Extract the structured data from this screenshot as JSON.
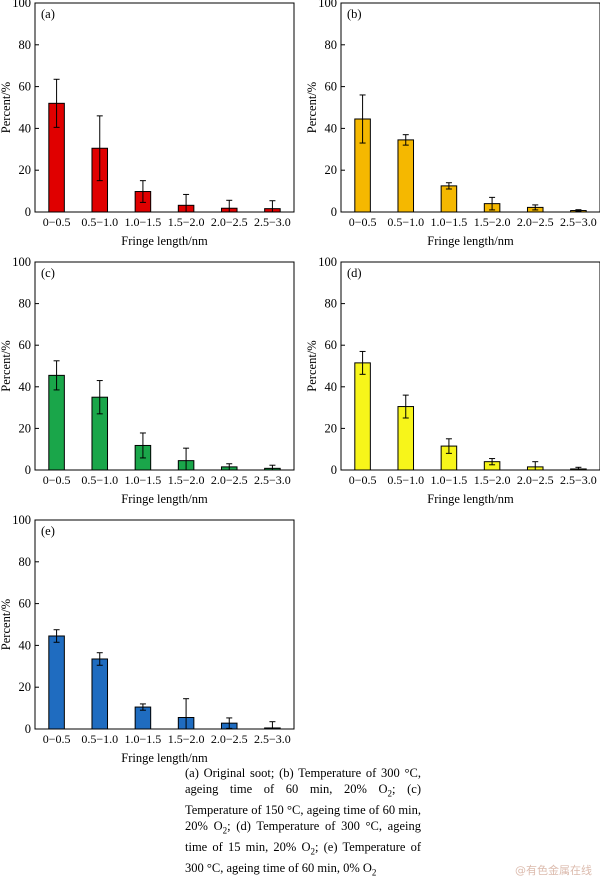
{
  "chart_data": [
    {
      "type": "bar",
      "panel_label": "(a)",
      "color": "#e00000",
      "categories": [
        "0−0.5",
        "0.5−1.0",
        "1.0−1.5",
        "1.5−2.0",
        "2.0−2.5",
        "2.5−3.0"
      ],
      "values": [
        52,
        30.5,
        9.8,
        3.2,
        1.8,
        1.6
      ],
      "errors": [
        11.5,
        15.5,
        5.2,
        5.2,
        3.8,
        3.8
      ],
      "xlabel": "Fringe length/nm",
      "ylabel": "Percent/%",
      "ylim": [
        0,
        100
      ],
      "yticks": [
        0,
        20,
        40,
        60,
        80,
        100
      ]
    },
    {
      "type": "bar",
      "panel_label": "(b)",
      "color": "#f5b800",
      "categories": [
        "0−0.5",
        "0.5−1.0",
        "1.0−1.5",
        "1.5−2.0",
        "2.0−2.5",
        "2.5−3.0"
      ],
      "values": [
        44.5,
        34.5,
        12.5,
        4,
        2.2,
        0.7
      ],
      "errors": [
        11.5,
        2.5,
        1.5,
        3,
        1.2,
        0.4
      ],
      "xlabel": "Fringe length/nm",
      "ylabel": "Percent/%",
      "ylim": [
        0,
        100
      ],
      "yticks": [
        0,
        20,
        40,
        60,
        80,
        100
      ]
    },
    {
      "type": "bar",
      "panel_label": "(c)",
      "color": "#1aa64a",
      "categories": [
        "0−0.5",
        "0.5−1.0",
        "1.0−1.5",
        "1.5−2.0",
        "2.0−2.5",
        "2.5−3.0"
      ],
      "values": [
        45.5,
        35,
        11.8,
        4.5,
        1.5,
        0.8
      ],
      "errors": [
        7,
        8,
        6,
        6,
        1.5,
        1.5
      ],
      "xlabel": "Fringe length/nm",
      "ylabel": "Percent/%",
      "ylim": [
        0,
        100
      ],
      "yticks": [
        0,
        20,
        40,
        60,
        80,
        100
      ]
    },
    {
      "type": "bar",
      "panel_label": "(d)",
      "color": "#f7f51a",
      "categories": [
        "0−0.5",
        "0.5−1.0",
        "1.0−1.5",
        "1.5−2.0",
        "2.0−2.5",
        "2.5−3.0"
      ],
      "values": [
        51.5,
        30.5,
        11.5,
        4,
        1.5,
        0.5
      ],
      "errors": [
        5.5,
        5.5,
        3.5,
        1.5,
        2.5,
        0.8
      ],
      "xlabel": "Fringe length/nm",
      "ylabel": "Percent/%",
      "ylim": [
        0,
        100
      ],
      "yticks": [
        0,
        20,
        40,
        60,
        80,
        100
      ]
    },
    {
      "type": "bar",
      "panel_label": "(e)",
      "color": "#1f6cc0",
      "categories": [
        "0−0.5",
        "0.5−1.0",
        "1.0−1.5",
        "1.5−2.0",
        "2.0−2.5",
        "2.5−3.0"
      ],
      "values": [
        44.5,
        33.5,
        10.5,
        5.5,
        2.8,
        0.5
      ],
      "errors": [
        3,
        3,
        1.5,
        9,
        2.5,
        3
      ],
      "xlabel": "Fringe length/nm",
      "ylabel": "Percent/%",
      "ylim": [
        0,
        100
      ],
      "yticks": [
        0,
        20,
        40,
        60,
        80,
        100
      ]
    }
  ],
  "caption": {
    "a_part": "(a) Original soot; (b) Temperature of 300 °C, ageing time of 60 min, 20% O",
    "a_sub": "2",
    "c_part": "; (c) Temperature of 150 °C, ageing time of 60 min, 20% O",
    "c_sub": "2",
    "d_part": "; (d) Temperature of 300 °C, ageing time of 15 min, 20% O",
    "d_sub": "2",
    "e_part": "; (e) Temperature of 300 °C, ageing time of 60 min, 0% O",
    "e_sub": "2"
  },
  "watermark": "@有色金属在线"
}
